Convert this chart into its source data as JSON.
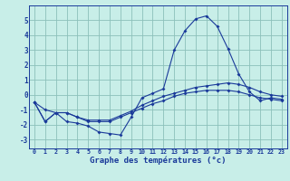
{
  "title": "Graphe des températures (°c)",
  "background_color": "#c8eee8",
  "grid_color": "#8cc0ba",
  "line_color": "#1a3a9a",
  "x_values": [
    0,
    1,
    2,
    3,
    4,
    5,
    6,
    7,
    8,
    9,
    10,
    11,
    12,
    13,
    14,
    15,
    16,
    17,
    18,
    19,
    20,
    21,
    22,
    23
  ],
  "x_labels": [
    "0",
    "1",
    "2",
    "3",
    "4",
    "5",
    "6",
    "7",
    "8",
    "9",
    "10",
    "11",
    "12",
    "13",
    "14",
    "15",
    "16",
    "17",
    "18",
    "19",
    "20",
    "21",
    "22",
    "23"
  ],
  "ylim": [
    -3.6,
    6.0
  ],
  "yticks": [
    -3,
    -2,
    -1,
    0,
    1,
    2,
    3,
    4,
    5
  ],
  "curve_main": [
    -0.5,
    -1.8,
    -1.2,
    -1.8,
    -1.9,
    -2.1,
    -2.5,
    -2.6,
    -2.7,
    -1.5,
    -0.2,
    0.1,
    0.4,
    3.0,
    4.3,
    5.1,
    5.3,
    4.6,
    3.1,
    1.4,
    0.2,
    -0.4,
    -0.2,
    -0.3
  ],
  "curve_upper": [
    -0.5,
    -1.0,
    -1.2,
    -1.2,
    -1.5,
    -1.7,
    -1.7,
    -1.7,
    -1.4,
    -1.1,
    -0.7,
    -0.4,
    -0.1,
    0.1,
    0.3,
    0.5,
    0.6,
    0.7,
    0.8,
    0.7,
    0.5,
    0.2,
    0.0,
    -0.1
  ],
  "curve_lower": [
    -0.5,
    -1.8,
    -1.2,
    -1.2,
    -1.5,
    -1.8,
    -1.8,
    -1.8,
    -1.5,
    -1.2,
    -0.9,
    -0.6,
    -0.4,
    -0.1,
    0.1,
    0.2,
    0.3,
    0.3,
    0.3,
    0.2,
    0.0,
    -0.2,
    -0.3,
    -0.4
  ]
}
